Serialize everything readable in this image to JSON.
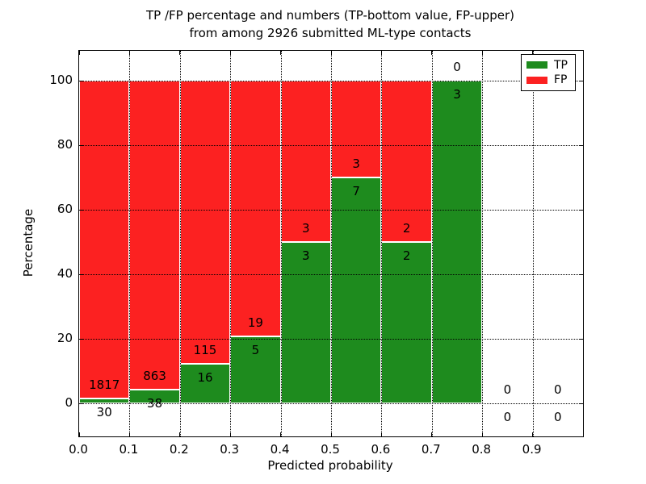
{
  "title_line1": "TP /FP percentage and numbers (TP-bottom value, FP-upper)",
  "title_line2": "from among 2926 submitted ML-type contacts",
  "legend": {
    "tp_label": "TP",
    "fp_label": "FP"
  },
  "chart_data": {
    "type": "bar",
    "stacked": true,
    "title": "TP /FP percentage and numbers (TP-bottom value, FP-upper) from among 2926 submitted ML-type contacts",
    "xlabel": "Predicted probability",
    "ylabel": "Percentage",
    "total_contacts": 2926,
    "xlim": [
      0.0,
      1.0
    ],
    "ylim": [
      -10.25,
      109.25
    ],
    "x_tick_values": [
      0.0,
      0.1,
      0.2,
      0.3,
      0.4,
      0.5,
      0.6,
      0.7,
      0.8,
      0.9
    ],
    "x_tick_labels": [
      "0.0",
      "0.1",
      "0.2",
      "0.3",
      "0.4",
      "0.5",
      "0.6",
      "0.7",
      "0.8",
      "0.9"
    ],
    "y_ticks": [
      0,
      20,
      40,
      60,
      80,
      100
    ],
    "x_gridlines": [
      0.1,
      0.2,
      0.3,
      0.4,
      0.5,
      0.6,
      0.7,
      0.8,
      0.9
    ],
    "grid": true,
    "grid_on_top": true,
    "legend_position": "upper right",
    "series": [
      {
        "name": "TP",
        "color": "#1e8b1e"
      },
      {
        "name": "FP",
        "color": "#fc2121"
      }
    ],
    "bar_edge_color": "#ffffff",
    "label_offset_units": 2,
    "bins": [
      {
        "x0": 0.0,
        "x1": 0.1,
        "tp": 30,
        "fp": 1817,
        "tp_pct": 1.62,
        "fp_pct": 98.38
      },
      {
        "x0": 0.1,
        "x1": 0.2,
        "tp": 38,
        "fp": 863,
        "tp_pct": 4.22,
        "fp_pct": 95.78
      },
      {
        "x0": 0.2,
        "x1": 0.3,
        "tp": 16,
        "fp": 115,
        "tp_pct": 12.21,
        "fp_pct": 87.79
      },
      {
        "x0": 0.3,
        "x1": 0.4,
        "tp": 5,
        "fp": 19,
        "tp_pct": 20.83,
        "fp_pct": 79.17
      },
      {
        "x0": 0.4,
        "x1": 0.5,
        "tp": 3,
        "fp": 3,
        "tp_pct": 50.0,
        "fp_pct": 50.0
      },
      {
        "x0": 0.5,
        "x1": 0.6,
        "tp": 7,
        "fp": 3,
        "tp_pct": 70.0,
        "fp_pct": 30.0
      },
      {
        "x0": 0.6,
        "x1": 0.7,
        "tp": 2,
        "fp": 2,
        "tp_pct": 50.0,
        "fp_pct": 50.0
      },
      {
        "x0": 0.7,
        "x1": 0.8,
        "tp": 3,
        "fp": 0,
        "tp_pct": 100.0,
        "fp_pct": 0.0
      },
      {
        "x0": 0.8,
        "x1": 0.9,
        "tp": 0,
        "fp": 0,
        "tp_pct": 0.0,
        "fp_pct": 0.0
      },
      {
        "x0": 0.9,
        "x1": 1.0,
        "tp": 0,
        "fp": 0,
        "tp_pct": 0.0,
        "fp_pct": 0.0
      }
    ]
  }
}
